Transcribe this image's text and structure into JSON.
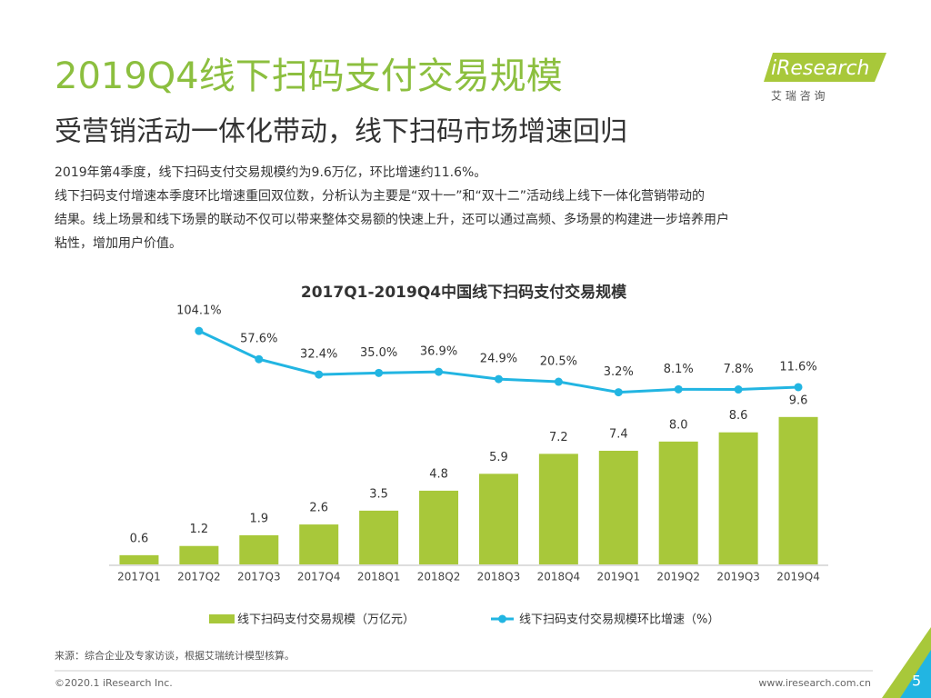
{
  "header": {
    "title": "2019Q4线下扫码支付交易规模",
    "subtitle": "受营销活动一体化带动，线下扫码市场增速回归",
    "paragraph": [
      "2019年第4季度，线下扫码支付交易规模约为9.6万亿，环比增速约11.6%。",
      "线下扫码支付增速本季度环比增速重回双位数，分析认为主要是“双十一”和“双十二”活动线上线下一体化营销带动的",
      "结果。线上场景和线下场景的联动不仅可以带来整体交易额的快速上升，还可以通过高频、多场景的构建进一步培养用户",
      "粘性，增加用户价值。"
    ],
    "logo": "iResearch",
    "logo_sub": "艾 瑞 咨 询"
  },
  "chart_data": {
    "type": "bar_line",
    "title": "2017Q1-2019Q4中国线下扫码支付交易规模",
    "categories": [
      "2017Q1",
      "2017Q2",
      "2017Q3",
      "2017Q4",
      "2018Q1",
      "2018Q2",
      "2018Q3",
      "2018Q4",
      "2019Q1",
      "2019Q2",
      "2019Q3",
      "2019Q4"
    ],
    "ylim": [
      0,
      19
    ],
    "y2lim": [
      -280,
      200
    ],
    "series": [
      {
        "name": "线下扫码支付交易规模（万亿元）",
        "color": "#a8c83a",
        "values": [
          0.6,
          1.2,
          1.9,
          2.6,
          3.5,
          4.8,
          5.9,
          7.2,
          7.4,
          8.0,
          8.6,
          9.6
        ],
        "value_labels": [
          "0.6",
          "1.2",
          "1.9",
          "2.6",
          "3.5",
          "4.8",
          "5.9",
          "7.2",
          "7.4",
          "8.0",
          "8.6",
          "9.6"
        ]
      },
      {
        "name": "线下扫码支付交易规模环比增速（%）",
        "color": "#22b5e2",
        "axis": "y2",
        "values": [
          null,
          104.1,
          57.6,
          32.4,
          35.0,
          36.9,
          24.9,
          20.5,
          3.2,
          8.1,
          7.8,
          11.6
        ],
        "value_labels": [
          null,
          "104.1%",
          "57.6%",
          "32.4%",
          "35.0%",
          "36.9%",
          "24.9%",
          "20.5%",
          "3.2%",
          "8.1%",
          "7.8%",
          "11.6%"
        ]
      }
    ]
  },
  "footer": {
    "source": "来源：综合企业及专家访谈，根据艾瑞统计模型核算。",
    "copyright": "©2020.1 iResearch Inc.",
    "url": "www.iresearch.com.cn",
    "page": "5"
  }
}
